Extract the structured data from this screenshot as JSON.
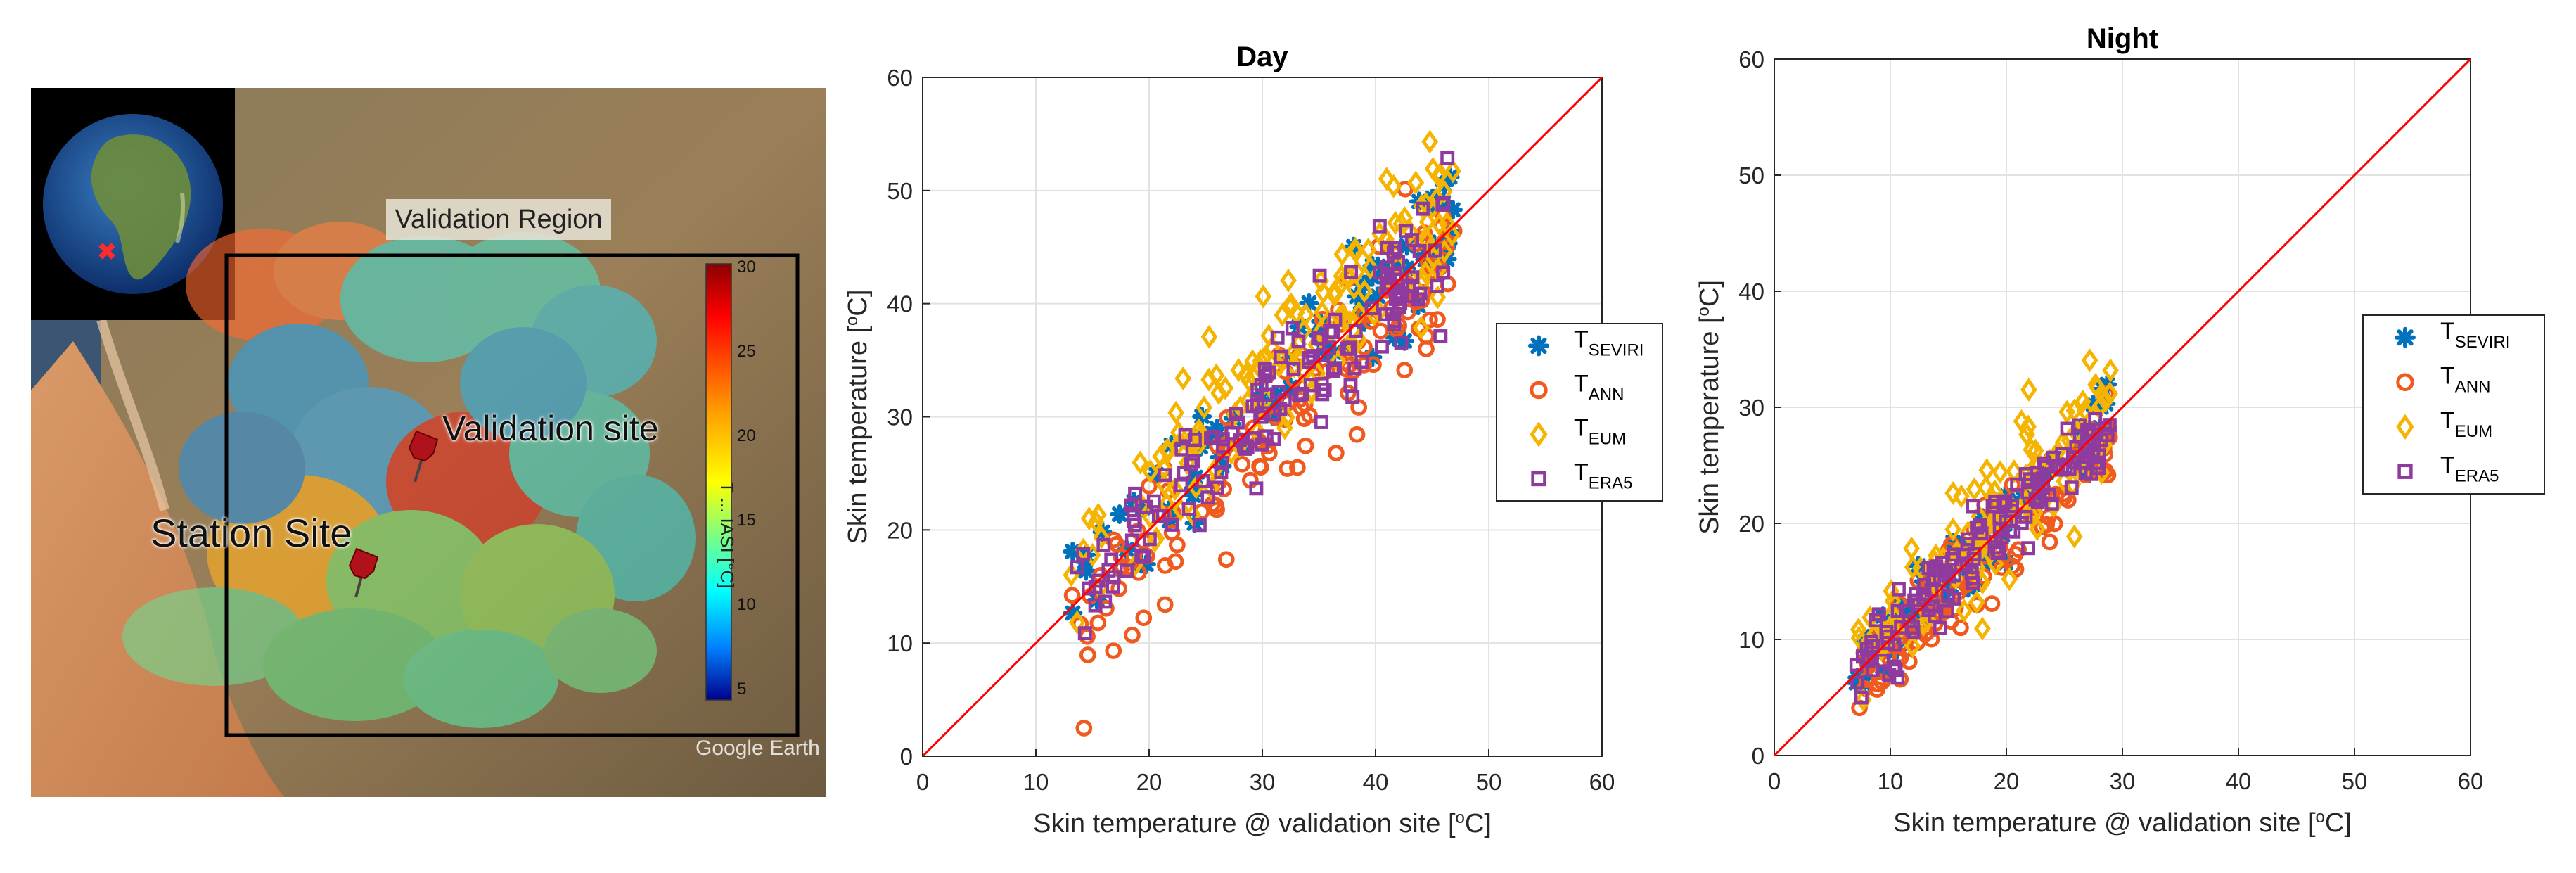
{
  "map": {
    "region_label": "Validation Region",
    "validation_site_label": "Validation site",
    "station_site_label": "Station Site",
    "colorbar_ticks": [
      "30",
      "25",
      "20",
      "15",
      "10",
      "5"
    ],
    "colorbar_label": "T ... IASI [°C]",
    "watermark": "Google Earth"
  },
  "chart_data": [
    {
      "type": "scatter",
      "title": "Day",
      "xlabel": "Skin temperature @ validation site [",
      "xlabel_sup": "o",
      "xlabel_end": "C]",
      "ylabel": "Skin temperature [",
      "ylabel_sup": "o",
      "ylabel_end": "C]",
      "xlim": [
        0,
        60
      ],
      "ylim": [
        0,
        60
      ],
      "xticks": [
        0,
        10,
        20,
        30,
        40,
        50,
        60
      ],
      "yticks": [
        0,
        10,
        20,
        30,
        40,
        50,
        60
      ],
      "grid": true,
      "legend_position": "right",
      "identity_line": true,
      "series": [
        {
          "name": "T",
          "sub": "SEVIRI",
          "marker": "asterisk",
          "color": "#0072BD",
          "x_range": [
            13,
            47
          ],
          "slope": 1.0,
          "intercept": 1.5,
          "spread": 3.0,
          "n": 80
        },
        {
          "name": "T",
          "sub": "ANN",
          "marker": "circle",
          "color": "#F05A1E",
          "x_range": [
            13,
            47
          ],
          "slope": 0.97,
          "intercept": -0.5,
          "spread": 3.2,
          "n": 130
        },
        {
          "name": "T",
          "sub": "EUM",
          "marker": "diamond",
          "color": "#F5B400",
          "x_range": [
            13,
            47
          ],
          "slope": 1.0,
          "intercept": 3.0,
          "spread": 3.5,
          "n": 150
        },
        {
          "name": "T",
          "sub": "ERA5",
          "marker": "square",
          "color": "#8E3A9E",
          "x_range": [
            13,
            47
          ],
          "slope": 0.97,
          "intercept": 1.5,
          "spread": 2.6,
          "n": 150
        }
      ]
    },
    {
      "type": "scatter",
      "title": "Night",
      "xlabel": "Skin temperature @ validation site [",
      "xlabel_sup": "o",
      "xlabel_end": "C]",
      "ylabel": "Skin temperature [",
      "ylabel_sup": "o",
      "ylabel_end": "C]",
      "xlim": [
        0,
        60
      ],
      "ylim": [
        0,
        60
      ],
      "xticks": [
        0,
        10,
        20,
        30,
        40,
        50,
        60
      ],
      "yticks": [
        0,
        10,
        20,
        30,
        40,
        50,
        60
      ],
      "grid": true,
      "legend_position": "right",
      "identity_line": true,
      "series": [
        {
          "name": "T",
          "sub": "SEVIRI",
          "marker": "asterisk",
          "color": "#0072BD",
          "x_range": [
            7,
            29
          ],
          "slope": 1.0,
          "intercept": 0.5,
          "spread": 1.8,
          "n": 70
        },
        {
          "name": "T",
          "sub": "ANN",
          "marker": "circle",
          "color": "#F05A1E",
          "x_range": [
            7,
            29
          ],
          "slope": 0.95,
          "intercept": -0.5,
          "spread": 2.0,
          "n": 110
        },
        {
          "name": "T",
          "sub": "EUM",
          "marker": "diamond",
          "color": "#F5B400",
          "x_range": [
            7,
            29
          ],
          "slope": 1.0,
          "intercept": 1.0,
          "spread": 2.6,
          "n": 130
        },
        {
          "name": "T",
          "sub": "ERA5",
          "marker": "square",
          "color": "#8E3A9E",
          "x_range": [
            7,
            29
          ],
          "slope": 0.98,
          "intercept": 0.5,
          "spread": 1.7,
          "n": 140
        }
      ]
    }
  ]
}
